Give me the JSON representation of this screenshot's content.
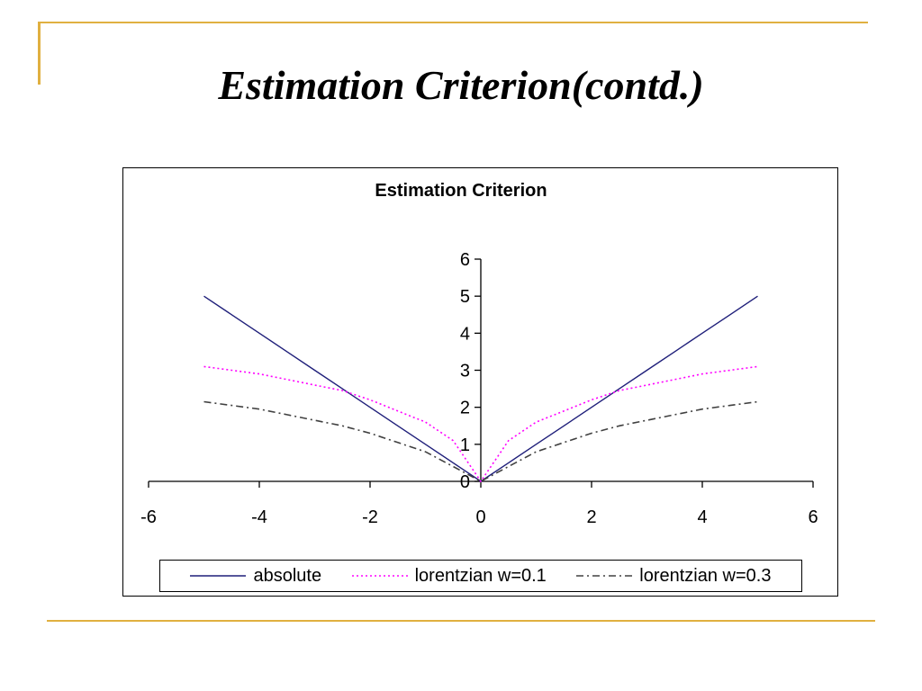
{
  "slide": {
    "title": "Estimation Criterion(contd.)",
    "accent_color": "#E0B040"
  },
  "chart_data": {
    "type": "line",
    "title": "Estimation Criterion",
    "xlabel": "",
    "ylabel": "",
    "xlim": [
      -6,
      6
    ],
    "ylim": [
      0,
      6
    ],
    "xticks": [
      "-6",
      "-4",
      "-2",
      "0",
      "2",
      "4",
      "6"
    ],
    "yticks": [
      "0",
      "1",
      "2",
      "3",
      "4",
      "5",
      "6"
    ],
    "grid": false,
    "legend_position": "bottom",
    "x": [
      -5,
      -4.5,
      -4,
      -3.5,
      -3,
      -2.5,
      -2,
      -1.5,
      -1,
      -0.5,
      0,
      0.5,
      1,
      1.5,
      2,
      2.5,
      3,
      3.5,
      4,
      4.5,
      5
    ],
    "series": [
      {
        "name": "absolute",
        "color": "#1F1F7A",
        "dash": "solid",
        "values": [
          5,
          4.5,
          4,
          3.5,
          3,
          2.5,
          2,
          1.5,
          1,
          0.5,
          0,
          0.5,
          1,
          1.5,
          2,
          2.5,
          3,
          3.5,
          4,
          4.5,
          5
        ]
      },
      {
        "name": "lorentzian w=0.1",
        "color": "#FF00FF",
        "dash": "dotted",
        "values": [
          3.1,
          3.0,
          2.9,
          2.75,
          2.6,
          2.45,
          2.2,
          1.9,
          1.6,
          1.1,
          0,
          1.1,
          1.6,
          1.9,
          2.2,
          2.45,
          2.6,
          2.75,
          2.9,
          3.0,
          3.1
        ]
      },
      {
        "name": "lorentzian w=0.3",
        "color": "#404040",
        "dash": "dashdot",
        "values": [
          2.15,
          2.05,
          1.95,
          1.8,
          1.65,
          1.5,
          1.3,
          1.05,
          0.8,
          0.4,
          0,
          0.4,
          0.8,
          1.05,
          1.3,
          1.5,
          1.65,
          1.8,
          1.95,
          2.05,
          2.15
        ]
      }
    ]
  }
}
